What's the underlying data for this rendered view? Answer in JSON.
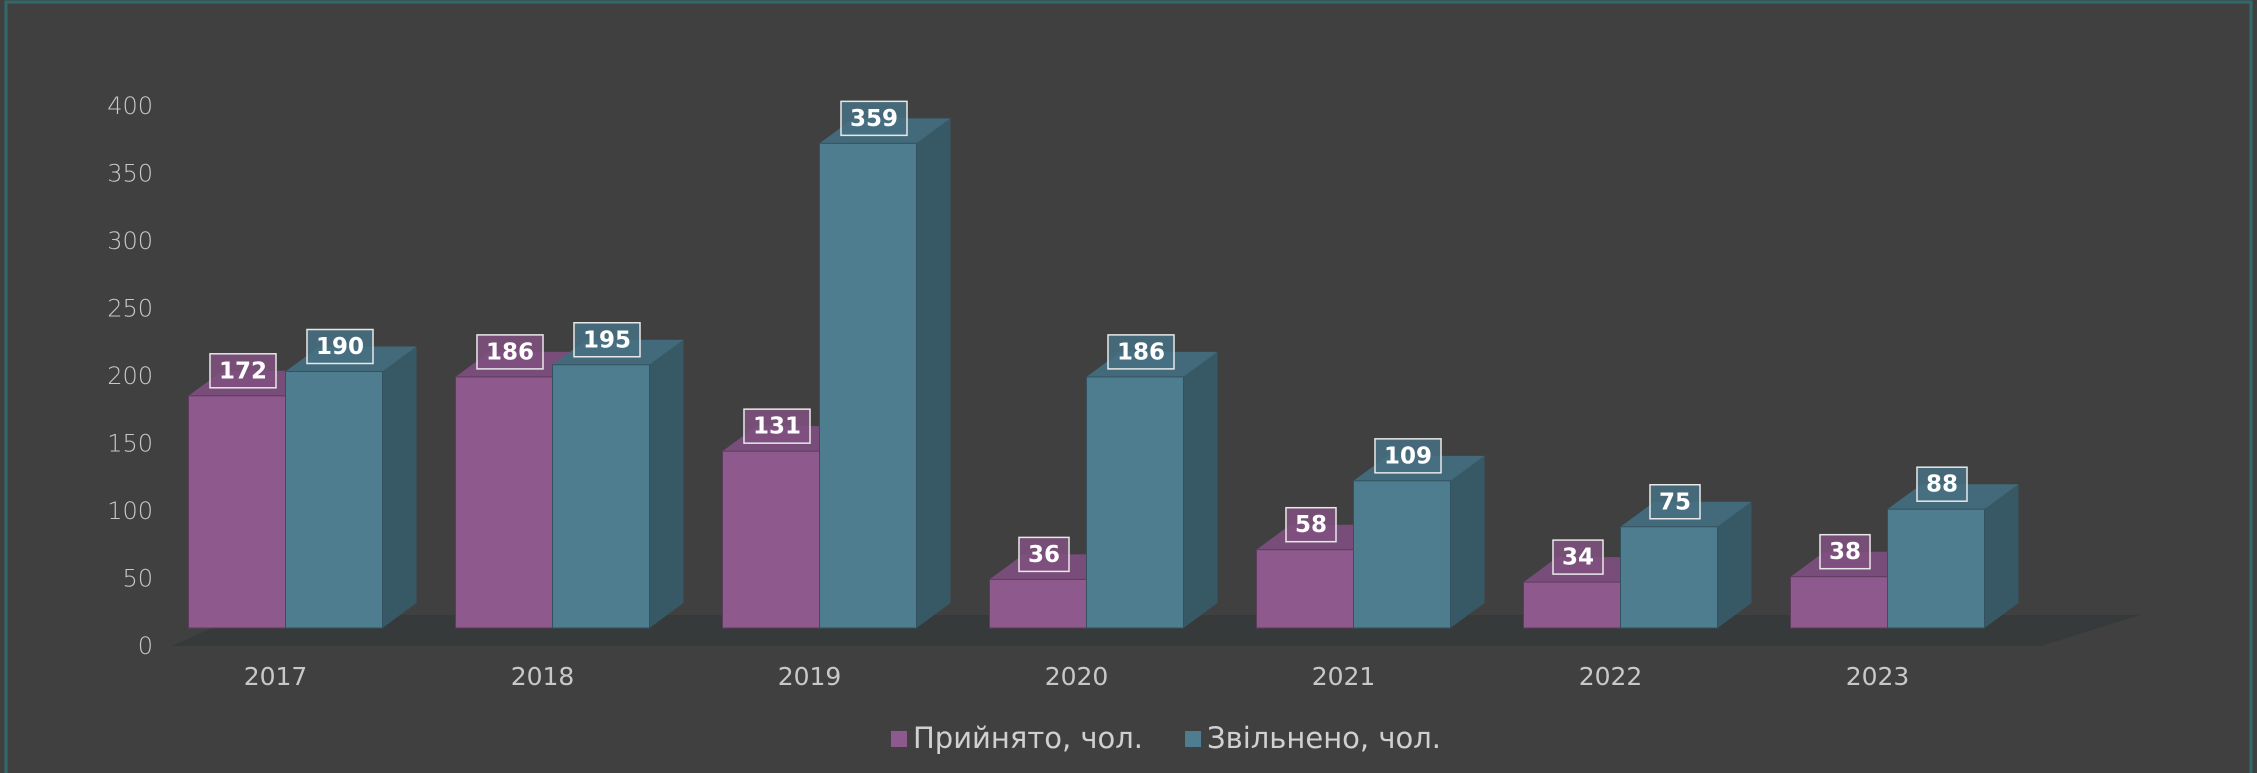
{
  "chart_data": {
    "type": "bar",
    "categories": [
      "2017",
      "2018",
      "2019",
      "2020",
      "2021",
      "2022",
      "2023"
    ],
    "series": [
      {
        "name": "Прийнято, чол.",
        "color": "#8e5a8e",
        "values": [
          172,
          186,
          131,
          36,
          58,
          34,
          38
        ]
      },
      {
        "name": "Звільнено, чол.",
        "color": "#4f7d90",
        "values": [
          190,
          195,
          359,
          186,
          109,
          75,
          88
        ]
      }
    ],
    "ylim": [
      0,
      400
    ],
    "yticks": [
      0,
      50,
      100,
      150,
      200,
      250,
      300,
      350,
      400
    ],
    "legend": "bottom",
    "grid": false
  }
}
